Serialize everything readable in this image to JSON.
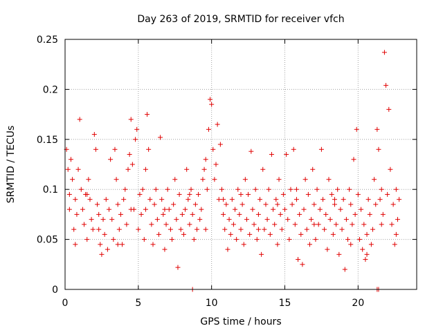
{
  "chart_data": {
    "type": "scatter",
    "title": "Day 263 of 2019, SRMTID for receiver vfch",
    "xlabel": "GPS time / hours",
    "ylabel": "SRMTID / TECUs",
    "xlim": [
      0,
      24
    ],
    "ylim": [
      0,
      0.25
    ],
    "xticks": [
      "0",
      "5",
      "10",
      "15",
      "20"
    ],
    "yticks": [
      "0",
      "0.05",
      "0.1",
      "0.15",
      "0.2",
      "0.25"
    ],
    "grid": true,
    "legend": "none",
    "marker": "plus",
    "color": "#e00000",
    "points": [
      [
        0.1,
        0.14
      ],
      [
        0.2,
        0.12
      ],
      [
        0.3,
        0.095
      ],
      [
        0.4,
        0.13
      ],
      [
        0.5,
        0.11
      ],
      [
        0.6,
        0.06
      ],
      [
        0.7,
        0.09
      ],
      [
        0.8,
        0.075
      ],
      [
        0.9,
        0.12
      ],
      [
        1.0,
        0.17
      ],
      [
        1.1,
        0.1
      ],
      [
        1.2,
        0.08
      ],
      [
        1.3,
        0.065
      ],
      [
        1.4,
        0.095
      ],
      [
        1.5,
        0.05
      ],
      [
        1.6,
        0.11
      ],
      [
        1.7,
        0.09
      ],
      [
        1.8,
        0.07
      ],
      [
        1.9,
        0.06
      ],
      [
        2.0,
        0.155
      ],
      [
        2.1,
        0.14
      ],
      [
        2.2,
        0.085
      ],
      [
        2.3,
        0.06
      ],
      [
        2.4,
        0.045
      ],
      [
        2.5,
        0.035
      ],
      [
        2.6,
        0.07
      ],
      [
        2.7,
        0.055
      ],
      [
        2.8,
        0.09
      ],
      [
        2.9,
        0.04
      ],
      [
        3.0,
        0.08
      ],
      [
        3.1,
        0.13
      ],
      [
        3.2,
        0.07
      ],
      [
        3.3,
        0.05
      ],
      [
        3.4,
        0.14
      ],
      [
        3.5,
        0.11
      ],
      [
        3.6,
        0.085
      ],
      [
        3.7,
        0.06
      ],
      [
        3.8,
        0.075
      ],
      [
        3.9,
        0.045
      ],
      [
        4.0,
        0.09
      ],
      [
        4.1,
        0.1
      ],
      [
        4.2,
        0.065
      ],
      [
        4.3,
        0.12
      ],
      [
        4.4,
        0.135
      ],
      [
        4.5,
        0.17
      ],
      [
        4.6,
        0.125
      ],
      [
        4.7,
        0.08
      ],
      [
        4.8,
        0.15
      ],
      [
        4.9,
        0.16
      ],
      [
        5.0,
        0.06
      ],
      [
        5.1,
        0.095
      ],
      [
        5.2,
        0.075
      ],
      [
        5.3,
        0.1
      ],
      [
        5.4,
        0.05
      ],
      [
        5.5,
        0.08
      ],
      [
        5.6,
        0.175
      ],
      [
        5.7,
        0.14
      ],
      [
        5.8,
        0.09
      ],
      [
        5.9,
        0.065
      ],
      [
        6.0,
        0.045
      ],
      [
        6.1,
        0.085
      ],
      [
        6.2,
        0.1
      ],
      [
        6.3,
        0.07
      ],
      [
        6.4,
        0.055
      ],
      [
        6.5,
        0.152
      ],
      [
        6.6,
        0.09
      ],
      [
        6.7,
        0.075
      ],
      [
        6.8,
        0.04
      ],
      [
        6.9,
        0.065
      ],
      [
        7.0,
        0.1
      ],
      [
        7.1,
        0.08
      ],
      [
        7.2,
        0.06
      ],
      [
        7.3,
        0.05
      ],
      [
        7.4,
        0.085
      ],
      [
        7.5,
        0.11
      ],
      [
        7.6,
        0.07
      ],
      [
        7.7,
        0.022
      ],
      [
        7.8,
        0.095
      ],
      [
        7.9,
        0.06
      ],
      [
        8.0,
        0.075
      ],
      [
        8.1,
        0.055
      ],
      [
        8.2,
        0.08
      ],
      [
        8.3,
        0.12
      ],
      [
        8.4,
        0.09
      ],
      [
        8.5,
        0.065
      ],
      [
        8.6,
        0.1
      ],
      [
        8.7,
        0.075
      ],
      [
        8.8,
        0.05
      ],
      [
        8.9,
        0.085
      ],
      [
        9.0,
        0.06
      ],
      [
        9.1,
        0.095
      ],
      [
        9.2,
        0.07
      ],
      [
        9.3,
        0.08
      ],
      [
        9.4,
        0.11
      ],
      [
        9.5,
        0.12
      ],
      [
        9.6,
        0.13
      ],
      [
        9.7,
        0.1
      ],
      [
        9.8,
        0.16
      ],
      [
        9.9,
        0.19
      ],
      [
        10.0,
        0.185
      ],
      [
        10.1,
        0.14
      ],
      [
        10.2,
        0.11
      ],
      [
        10.3,
        0.125
      ],
      [
        10.4,
        0.165
      ],
      [
        10.5,
        0.09
      ],
      [
        10.6,
        0.145
      ],
      [
        10.7,
        0.1
      ],
      [
        10.8,
        0.075
      ],
      [
        10.9,
        0.06
      ],
      [
        11.0,
        0.085
      ],
      [
        11.1,
        0.04
      ],
      [
        11.2,
        0.07
      ],
      [
        11.3,
        0.055
      ],
      [
        11.4,
        0.09
      ],
      [
        11.5,
        0.065
      ],
      [
        11.6,
        0.08
      ],
      [
        11.7,
        0.05
      ],
      [
        11.8,
        0.1
      ],
      [
        11.9,
        0.075
      ],
      [
        12.0,
        0.06
      ],
      [
        12.1,
        0.085
      ],
      [
        12.2,
        0.045
      ],
      [
        12.3,
        0.11
      ],
      [
        12.4,
        0.07
      ],
      [
        12.5,
        0.095
      ],
      [
        12.6,
        0.055
      ],
      [
        12.7,
        0.138
      ],
      [
        12.8,
        0.08
      ],
      [
        12.9,
        0.065
      ],
      [
        13.0,
        0.1
      ],
      [
        13.1,
        0.05
      ],
      [
        13.2,
        0.075
      ],
      [
        13.3,
        0.09
      ],
      [
        13.4,
        0.035
      ],
      [
        13.5,
        0.12
      ],
      [
        13.6,
        0.06
      ],
      [
        13.7,
        0.085
      ],
      [
        13.8,
        0.07
      ],
      [
        13.9,
        0.1
      ],
      [
        14.0,
        0.055
      ],
      [
        14.1,
        0.135
      ],
      [
        14.2,
        0.08
      ],
      [
        14.3,
        0.065
      ],
      [
        14.4,
        0.09
      ],
      [
        14.5,
        0.045
      ],
      [
        14.6,
        0.11
      ],
      [
        14.7,
        0.075
      ],
      [
        14.8,
        0.06
      ],
      [
        14.9,
        0.095
      ],
      [
        15.0,
        0.08
      ],
      [
        15.1,
        0.135
      ],
      [
        15.2,
        0.07
      ],
      [
        15.3,
        0.05
      ],
      [
        15.4,
        0.1
      ],
      [
        15.5,
        0.085
      ],
      [
        15.6,
        0.14
      ],
      [
        15.7,
        0.065
      ],
      [
        15.8,
        0.09
      ],
      [
        15.9,
        0.03
      ],
      [
        16.0,
        0.075
      ],
      [
        16.1,
        0.055
      ],
      [
        16.2,
        0.025
      ],
      [
        16.3,
        0.08
      ],
      [
        16.4,
        0.11
      ],
      [
        16.5,
        0.06
      ],
      [
        16.6,
        0.095
      ],
      [
        16.7,
        0.045
      ],
      [
        16.8,
        0.07
      ],
      [
        16.9,
        0.12
      ],
      [
        17.0,
        0.085
      ],
      [
        17.1,
        0.05
      ],
      [
        17.2,
        0.1
      ],
      [
        17.3,
        0.065
      ],
      [
        17.4,
        0.08
      ],
      [
        17.5,
        0.14
      ],
      [
        17.6,
        0.09
      ],
      [
        17.7,
        0.06
      ],
      [
        17.8,
        0.075
      ],
      [
        17.9,
        0.04
      ],
      [
        18.0,
        0.11
      ],
      [
        18.1,
        0.07
      ],
      [
        18.2,
        0.095
      ],
      [
        18.3,
        0.055
      ],
      [
        18.4,
        0.085
      ],
      [
        18.5,
        0.065
      ],
      [
        18.6,
        0.1
      ],
      [
        18.7,
        0.035
      ],
      [
        18.8,
        0.08
      ],
      [
        18.9,
        0.06
      ],
      [
        19.0,
        0.09
      ],
      [
        19.1,
        0.02
      ],
      [
        19.2,
        0.07
      ],
      [
        19.3,
        0.05
      ],
      [
        19.4,
        0.1
      ],
      [
        19.5,
        0.085
      ],
      [
        19.6,
        0.065
      ],
      [
        19.7,
        0.13
      ],
      [
        19.8,
        0.075
      ],
      [
        19.9,
        0.16
      ],
      [
        20.0,
        0.095
      ],
      [
        20.1,
        0.05
      ],
      [
        20.2,
        0.08
      ],
      [
        20.3,
        0.04
      ],
      [
        20.4,
        0.065
      ],
      [
        20.5,
        0.03
      ],
      [
        20.6,
        0.055
      ],
      [
        20.7,
        0.09
      ],
      [
        20.8,
        0.075
      ],
      [
        20.9,
        0.045
      ],
      [
        21.0,
        0.06
      ],
      [
        21.1,
        0.11
      ],
      [
        21.2,
        0.085
      ],
      [
        21.3,
        0.16
      ],
      [
        21.4,
        0.14
      ],
      [
        21.5,
        0.09
      ],
      [
        21.6,
        0.1
      ],
      [
        21.7,
        0.075
      ],
      [
        21.8,
        0.237
      ],
      [
        21.9,
        0.204
      ],
      [
        22.0,
        0.095
      ],
      [
        22.1,
        0.18
      ],
      [
        22.2,
        0.12
      ],
      [
        22.3,
        0.065
      ],
      [
        22.4,
        0.085
      ],
      [
        22.5,
        0.045
      ],
      [
        22.6,
        0.1
      ],
      [
        22.7,
        0.07
      ],
      [
        22.8,
        0.09
      ],
      [
        0.3,
        0.08
      ],
      [
        0.7,
        0.045
      ],
      [
        1.5,
        0.095
      ],
      [
        2.3,
        0.075
      ],
      [
        3.6,
        0.045
      ],
      [
        4.5,
        0.08
      ],
      [
        5.5,
        0.12
      ],
      [
        6.8,
        0.08
      ],
      [
        8.5,
        0.095
      ],
      [
        9.6,
        0.06
      ],
      [
        10.8,
        0.09
      ],
      [
        12.0,
        0.095
      ],
      [
        13.2,
        0.06
      ],
      [
        14.5,
        0.085
      ],
      [
        15.8,
        0.1
      ],
      [
        17.0,
        0.065
      ],
      [
        18.4,
        0.09
      ],
      [
        19.5,
        0.045
      ],
      [
        20.6,
        0.035
      ],
      [
        21.6,
        0.065
      ],
      [
        22.6,
        0.055
      ],
      [
        8.7,
        0.0
      ],
      [
        21.3,
        0.0
      ],
      [
        21.4,
        0.0
      ]
    ]
  }
}
